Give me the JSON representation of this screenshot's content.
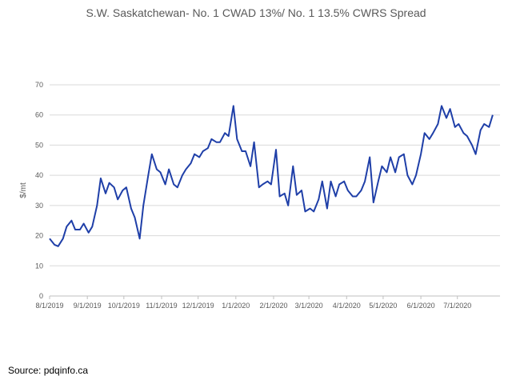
{
  "chart_data": {
    "type": "line",
    "title": "S.W. Saskatchewan- No. 1 CWAD 13%/ No. 1 13.5% CWRS Spread",
    "ylabel": "$/mt",
    "xlabel": "",
    "ylim": [
      0,
      70
    ],
    "yticks": [
      0,
      10,
      20,
      30,
      40,
      50,
      60,
      70
    ],
    "xticks": [
      "8/1/2019",
      "9/1/2019",
      "10/1/2019",
      "11/1/2019",
      "12/1/2019",
      "1/1/2020",
      "2/1/2020",
      "3/1/2020",
      "4/1/2020",
      "5/1/2020",
      "6/1/2020",
      "7/1/2020"
    ],
    "grid": "horizontal",
    "line_color": "#1F3FA8",
    "series": [
      {
        "x": [
          "2019-08-01",
          "2019-08-05",
          "2019-08-08",
          "2019-08-12",
          "2019-08-15",
          "2019-08-19",
          "2019-08-22",
          "2019-08-26",
          "2019-08-29",
          "2019-09-02",
          "2019-09-05",
          "2019-09-09",
          "2019-09-12",
          "2019-09-16",
          "2019-09-19",
          "2019-09-23",
          "2019-09-26",
          "2019-09-30",
          "2019-10-03",
          "2019-10-07",
          "2019-10-10",
          "2019-10-14",
          "2019-10-17",
          "2019-10-21",
          "2019-10-24",
          "2019-10-28",
          "2019-10-31",
          "2019-11-04",
          "2019-11-07",
          "2019-11-11",
          "2019-11-14",
          "2019-11-18",
          "2019-11-21",
          "2019-11-25",
          "2019-11-28",
          "2019-12-02",
          "2019-12-05",
          "2019-12-09",
          "2019-12-12",
          "2019-12-16",
          "2019-12-19",
          "2019-12-23",
          "2019-12-26",
          "2019-12-30",
          "2020-01-02",
          "2020-01-06",
          "2020-01-09",
          "2020-01-13",
          "2020-01-16",
          "2020-01-20",
          "2020-01-23",
          "2020-01-27",
          "2020-01-30",
          "2020-02-03",
          "2020-02-06",
          "2020-02-10",
          "2020-02-13",
          "2020-02-17",
          "2020-02-20",
          "2020-02-24",
          "2020-02-27",
          "2020-03-02",
          "2020-03-05",
          "2020-03-09",
          "2020-03-12",
          "2020-03-16",
          "2020-03-19",
          "2020-03-23",
          "2020-03-26",
          "2020-03-30",
          "2020-04-02",
          "2020-04-06",
          "2020-04-09",
          "2020-04-13",
          "2020-04-16",
          "2020-04-20",
          "2020-04-23",
          "2020-04-27",
          "2020-04-30",
          "2020-05-04",
          "2020-05-07",
          "2020-05-11",
          "2020-05-14",
          "2020-05-18",
          "2020-05-21",
          "2020-05-25",
          "2020-05-28",
          "2020-06-01",
          "2020-06-04",
          "2020-06-08",
          "2020-06-11",
          "2020-06-15",
          "2020-06-18",
          "2020-06-22",
          "2020-06-25",
          "2020-06-29",
          "2020-07-02",
          "2020-07-06",
          "2020-07-09",
          "2020-07-13",
          "2020-07-16",
          "2020-07-20",
          "2020-07-23",
          "2020-07-27",
          "2020-07-30"
        ],
        "y": [
          19,
          17,
          16.5,
          19,
          23,
          25,
          22,
          22,
          24,
          21,
          23,
          30,
          39,
          34,
          37.5,
          36,
          32,
          35,
          36,
          29,
          26,
          19,
          30,
          40,
          47,
          42,
          41,
          37,
          42,
          37,
          36,
          40,
          42,
          44,
          47,
          46,
          48,
          49,
          52,
          51,
          51,
          54,
          53,
          63,
          52,
          48,
          48,
          43,
          51,
          36,
          37,
          38,
          37,
          48.5,
          33,
          34,
          30,
          43,
          33.5,
          35,
          28,
          29,
          28,
          32,
          38,
          29,
          38,
          33,
          37,
          38,
          35,
          33,
          33,
          35,
          38,
          46,
          31,
          38,
          43,
          41,
          46,
          41,
          46,
          47,
          40,
          37,
          40,
          47,
          54,
          52,
          54,
          57,
          63,
          59,
          62,
          56,
          57,
          54,
          53,
          50,
          47,
          55,
          57,
          56,
          60
        ]
      }
    ],
    "source": "Source: pdqinfo.ca"
  }
}
